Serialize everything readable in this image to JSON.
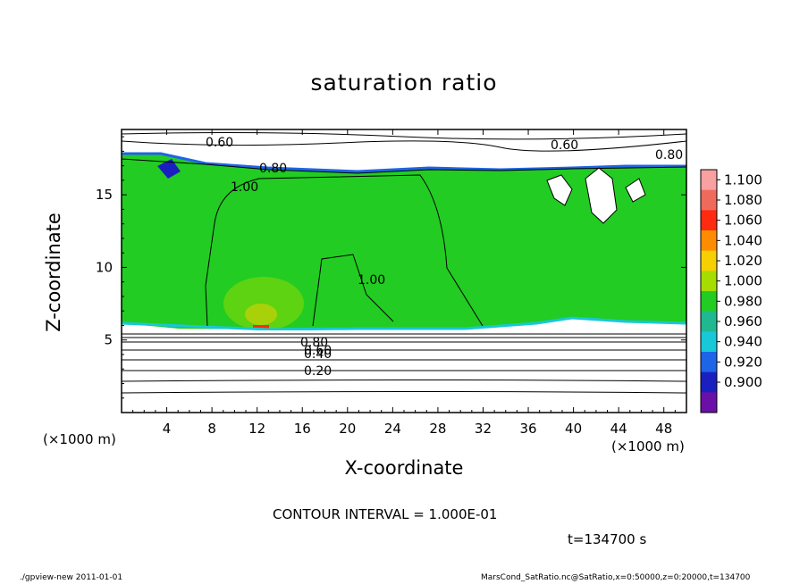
{
  "title": "saturation ratio",
  "chart_data": {
    "type": "heatmap",
    "title": "saturation ratio",
    "xlabel": "X-coordinate",
    "ylabel": "Z-coordinate",
    "x_unit": "(×1000 m)",
    "xlim": [
      0,
      50
    ],
    "ylim": [
      0,
      19.5
    ],
    "x_ticks": [
      4,
      8,
      12,
      16,
      20,
      24,
      28,
      32,
      36,
      40,
      44,
      48
    ],
    "y_ticks": [
      5,
      10,
      15
    ],
    "colorbar": {
      "levels": [
        "1.100",
        "1.080",
        "1.060",
        "1.040",
        "1.020",
        "1.000",
        "0.980",
        "0.960",
        "0.940",
        "0.920",
        "0.900"
      ],
      "colors": [
        "#f9a0a0",
        "#f06a5c",
        "#ff2a10",
        "#ff8c00",
        "#f6d000",
        "#a6dc00",
        "#22cc22",
        "#20b890",
        "#18c8d8",
        "#1e64e6",
        "#1a20c0",
        "#6a10a8"
      ]
    },
    "contour_labels": [
      "0.60",
      "0.60",
      "0.80",
      "0.80",
      "1.00",
      "1.00",
      "0.80",
      "0.60",
      "0.40",
      "0.20"
    ],
    "contour_interval": "CONTOUR INTERVAL = 1.000E-01",
    "time": "t=134700 s"
  },
  "footer": {
    "left": "./gpview-new   2011-01-01",
    "right": "MarsCond_SatRatio.nc@SatRatio,x=0:50000,z=0:20000,t=134700"
  }
}
